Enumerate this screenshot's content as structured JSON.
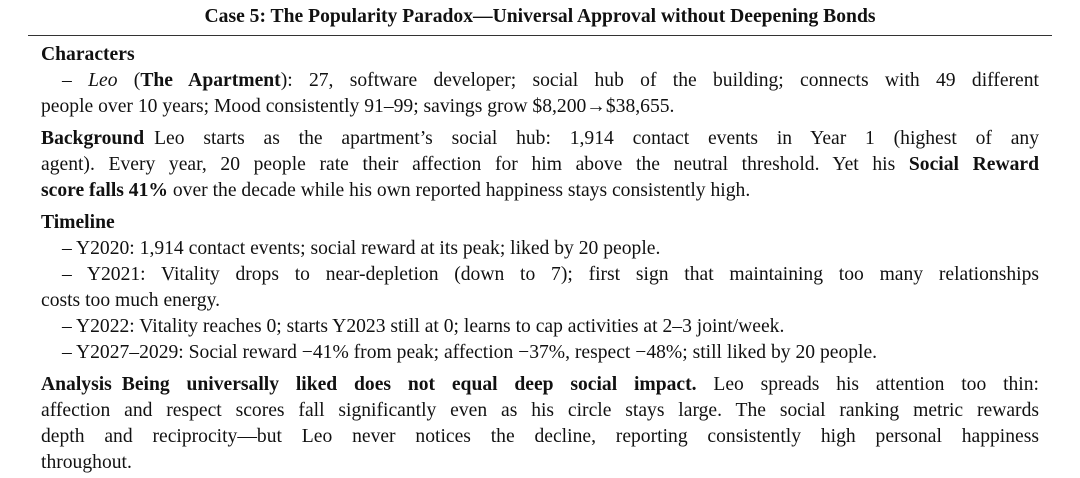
{
  "title": "Case 5: The Popularity Paradox—Universal Approval without Deepening Bonds",
  "characters": {
    "heading": "Characters",
    "lines": [
      [
        "– ",
        "Leo",
        " (",
        "The Apartment",
        "): 27, software developer; social hub of the building; connects with 49 different"
      ],
      [
        "people over 10 years; Mood consistently 91–99; savings grow $8,200→$38,655."
      ]
    ]
  },
  "background": {
    "heading": "Background",
    "lines": [
      [
        "Leo starts as the apartment’s social hub: 1,914 contact events in Year 1 (highest of any"
      ],
      [
        "agent). Every year, 20 people rate their affection for him above the neutral threshold. Yet his ",
        "Social Reward"
      ],
      [
        "score falls 41%",
        " over the decade while his own reported happiness stays consistently high."
      ]
    ]
  },
  "timeline": {
    "heading": "Timeline",
    "lines": [
      [
        "– Y2020: 1,914 contact events; social reward at its peak; liked by 20 people."
      ],
      [
        "– Y2021: Vitality drops to near-depletion (down to 7); first sign that maintaining too many relationships"
      ],
      [
        "costs too much energy."
      ],
      [
        "– Y2022: Vitality reaches 0; starts Y2023 still at 0; learns to cap activities at 2–3 joint/week."
      ],
      [
        "– Y2027–2029: Social reward −41% from peak; affection −37%, respect −48%; still liked by 20 people."
      ]
    ]
  },
  "analysis": {
    "heading": "Analysis",
    "lines": [
      [
        "Being universally liked does not equal deep social impact.",
        " Leo spreads his attention too thin:"
      ],
      [
        "affection and respect scores fall significantly even as his circle stays large. The social ranking metric rewards"
      ],
      [
        "depth and reciprocity—but Leo never notices the decline, reporting consistently high personal happiness"
      ],
      [
        "throughout."
      ]
    ]
  }
}
